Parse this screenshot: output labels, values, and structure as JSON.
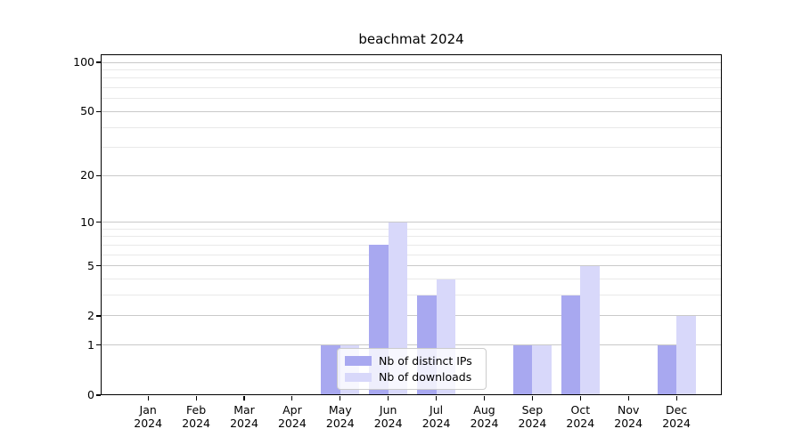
{
  "chart_data": {
    "type": "bar",
    "title": "beachmat 2024",
    "categories": [
      "Jan 2024",
      "Feb 2024",
      "Mar 2024",
      "Apr 2024",
      "May 2024",
      "Jun 2024",
      "Jul 2024",
      "Aug 2024",
      "Sep 2024",
      "Oct 2024",
      "Nov 2024",
      "Dec 2024"
    ],
    "series": [
      {
        "name": "Nb of distinct IPs",
        "color": "#a8a8f0",
        "values": [
          0,
          0,
          0,
          0,
          1,
          7,
          3,
          0,
          1,
          3,
          0,
          1
        ]
      },
      {
        "name": "Nb of downloads",
        "color": "#d8d8fa",
        "values": [
          0,
          0,
          0,
          0,
          1,
          10,
          4,
          0,
          1,
          5,
          0,
          2
        ]
      }
    ],
    "yscale": "log10(1+x)",
    "ylim": [
      0,
      100
    ],
    "yticks_major": [
      0,
      1,
      2,
      5,
      10,
      20,
      50,
      100
    ],
    "yticks_minor": [
      3,
      4,
      6,
      7,
      8,
      9,
      30,
      40,
      60,
      70,
      80,
      90
    ],
    "grid": "horizontal",
    "legend_position": "lower-center"
  },
  "colors": {
    "background": "#ffffff",
    "axis": "#000000",
    "text": "#000000",
    "grid_major": "#c9c9c9",
    "grid_minor": "#e9e9e9",
    "legend_border": "#cccccc",
    "legend_background": "rgba(255,255,255,0.8)"
  }
}
